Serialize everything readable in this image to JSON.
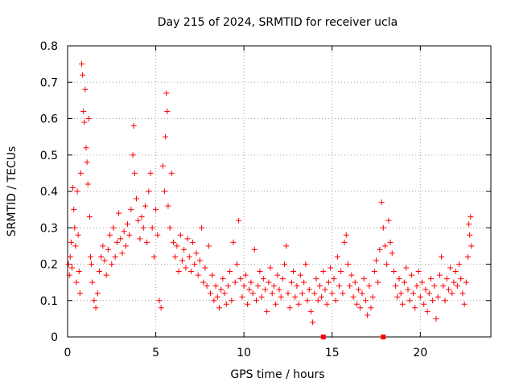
{
  "chart_data": {
    "type": "scatter",
    "title": "Day 215 of 2024, SRMTID for receiver ucla",
    "xlabel": "GPS time / hours",
    "ylabel": "SRMTID / TECUs",
    "xlim": [
      0,
      24.0
    ],
    "ylim": [
      0,
      0.8
    ],
    "xticks": [
      0,
      5,
      10,
      15,
      20
    ],
    "xtick_labels": [
      "0",
      "5",
      "10",
      "15",
      "20"
    ],
    "yticks": [
      0,
      0.1,
      0.2,
      0.3,
      0.4,
      0.5,
      0.6,
      0.7,
      0.8
    ],
    "ytick_labels": [
      "0",
      "0.1",
      "0.2",
      "0.3",
      "0.4",
      "0.5",
      "0.6",
      "0.7",
      "0.8"
    ],
    "grid": true,
    "marker": "plus",
    "color": "#ff0000",
    "series": [
      {
        "name": "SRMTID",
        "points": [
          [
            0.05,
            0.2
          ],
          [
            0.1,
            0.17
          ],
          [
            0.15,
            0.22
          ],
          [
            0.2,
            0.26
          ],
          [
            0.25,
            0.19
          ],
          [
            0.3,
            0.41
          ],
          [
            0.35,
            0.35
          ],
          [
            0.4,
            0.3
          ],
          [
            0.45,
            0.25
          ],
          [
            0.5,
            0.15
          ],
          [
            0.55,
            0.4
          ],
          [
            0.6,
            0.28
          ],
          [
            0.65,
            0.18
          ],
          [
            0.7,
            0.12
          ],
          [
            0.75,
            0.45
          ],
          [
            0.8,
            0.75
          ],
          [
            0.85,
            0.72
          ],
          [
            0.9,
            0.62
          ],
          [
            0.95,
            0.59
          ],
          [
            1.0,
            0.68
          ],
          [
            1.05,
            0.52
          ],
          [
            1.1,
            0.48
          ],
          [
            1.15,
            0.42
          ],
          [
            1.2,
            0.6
          ],
          [
            1.25,
            0.33
          ],
          [
            1.3,
            0.22
          ],
          [
            1.35,
            0.2
          ],
          [
            1.4,
            0.15
          ],
          [
            1.5,
            0.1
          ],
          [
            1.6,
            0.08
          ],
          [
            1.7,
            0.12
          ],
          [
            1.8,
            0.18
          ],
          [
            1.9,
            0.22
          ],
          [
            2.0,
            0.25
          ],
          [
            2.1,
            0.21
          ],
          [
            2.2,
            0.17
          ],
          [
            2.3,
            0.24
          ],
          [
            2.4,
            0.28
          ],
          [
            2.5,
            0.2
          ],
          [
            2.6,
            0.3
          ],
          [
            2.7,
            0.22
          ],
          [
            2.8,
            0.26
          ],
          [
            2.9,
            0.34
          ],
          [
            3.0,
            0.27
          ],
          [
            3.1,
            0.23
          ],
          [
            3.2,
            0.29
          ],
          [
            3.3,
            0.25
          ],
          [
            3.4,
            0.31
          ],
          [
            3.5,
            0.28
          ],
          [
            3.6,
            0.35
          ],
          [
            3.7,
            0.5
          ],
          [
            3.75,
            0.58
          ],
          [
            3.8,
            0.45
          ],
          [
            3.9,
            0.38
          ],
          [
            4.0,
            0.32
          ],
          [
            4.1,
            0.27
          ],
          [
            4.2,
            0.33
          ],
          [
            4.3,
            0.3
          ],
          [
            4.4,
            0.36
          ],
          [
            4.5,
            0.26
          ],
          [
            4.6,
            0.4
          ],
          [
            4.7,
            0.45
          ],
          [
            4.8,
            0.3
          ],
          [
            4.9,
            0.22
          ],
          [
            5.0,
            0.35
          ],
          [
            5.1,
            0.28
          ],
          [
            5.2,
            0.1
          ],
          [
            5.3,
            0.08
          ],
          [
            5.4,
            0.47
          ],
          [
            5.5,
            0.4
          ],
          [
            5.55,
            0.55
          ],
          [
            5.6,
            0.67
          ],
          [
            5.65,
            0.62
          ],
          [
            5.7,
            0.36
          ],
          [
            5.8,
            0.3
          ],
          [
            5.9,
            0.45
          ],
          [
            6.0,
            0.26
          ],
          [
            6.1,
            0.22
          ],
          [
            6.2,
            0.25
          ],
          [
            6.3,
            0.18
          ],
          [
            6.4,
            0.28
          ],
          [
            6.5,
            0.21
          ],
          [
            6.6,
            0.24
          ],
          [
            6.7,
            0.19
          ],
          [
            6.8,
            0.27
          ],
          [
            6.9,
            0.22
          ],
          [
            7.0,
            0.18
          ],
          [
            7.1,
            0.26
          ],
          [
            7.2,
            0.2
          ],
          [
            7.3,
            0.23
          ],
          [
            7.4,
            0.17
          ],
          [
            7.5,
            0.21
          ],
          [
            7.6,
            0.3
          ],
          [
            7.7,
            0.15
          ],
          [
            7.8,
            0.19
          ],
          [
            7.9,
            0.14
          ],
          [
            8.0,
            0.25
          ],
          [
            8.1,
            0.12
          ],
          [
            8.2,
            0.17
          ],
          [
            8.3,
            0.1
          ],
          [
            8.4,
            0.14
          ],
          [
            8.5,
            0.11
          ],
          [
            8.6,
            0.08
          ],
          [
            8.7,
            0.13
          ],
          [
            8.8,
            0.16
          ],
          [
            8.9,
            0.12
          ],
          [
            9.0,
            0.09
          ],
          [
            9.1,
            0.14
          ],
          [
            9.2,
            0.18
          ],
          [
            9.3,
            0.1
          ],
          [
            9.4,
            0.26
          ],
          [
            9.5,
            0.15
          ],
          [
            9.6,
            0.2
          ],
          [
            9.7,
            0.32
          ],
          [
            9.8,
            0.16
          ],
          [
            9.9,
            0.11
          ],
          [
            10.0,
            0.14
          ],
          [
            10.1,
            0.17
          ],
          [
            10.2,
            0.09
          ],
          [
            10.3,
            0.13
          ],
          [
            10.4,
            0.15
          ],
          [
            10.5,
            0.12
          ],
          [
            10.6,
            0.24
          ],
          [
            10.7,
            0.1
          ],
          [
            10.8,
            0.14
          ],
          [
            10.9,
            0.18
          ],
          [
            11.0,
            0.11
          ],
          [
            11.1,
            0.16
          ],
          [
            11.2,
            0.13
          ],
          [
            11.3,
            0.07
          ],
          [
            11.4,
            0.15
          ],
          [
            11.5,
            0.19
          ],
          [
            11.6,
            0.12
          ],
          [
            11.7,
            0.14
          ],
          [
            11.8,
            0.09
          ],
          [
            11.9,
            0.17
          ],
          [
            12.0,
            0.13
          ],
          [
            12.1,
            0.11
          ],
          [
            12.2,
            0.16
          ],
          [
            12.3,
            0.2
          ],
          [
            12.4,
            0.25
          ],
          [
            12.5,
            0.12
          ],
          [
            12.6,
            0.08
          ],
          [
            12.7,
            0.15
          ],
          [
            12.8,
            0.18
          ],
          [
            12.9,
            0.11
          ],
          [
            13.0,
            0.14
          ],
          [
            13.1,
            0.09
          ],
          [
            13.2,
            0.17
          ],
          [
            13.3,
            0.12
          ],
          [
            13.4,
            0.15
          ],
          [
            13.5,
            0.2
          ],
          [
            13.6,
            0.1
          ],
          [
            13.7,
            0.13
          ],
          [
            13.8,
            0.07
          ],
          [
            13.9,
            0.04
          ],
          [
            14.0,
            0.12
          ],
          [
            14.1,
            0.16
          ],
          [
            14.2,
            0.1
          ],
          [
            14.3,
            0.14
          ],
          [
            14.4,
            0.11
          ],
          [
            14.5,
            0.18
          ],
          [
            14.6,
            0.13
          ],
          [
            14.7,
            0.09
          ],
          [
            14.8,
            0.15
          ],
          [
            14.9,
            0.19
          ],
          [
            15.0,
            0.12
          ],
          [
            15.1,
            0.16
          ],
          [
            15.2,
            0.1
          ],
          [
            15.3,
            0.22
          ],
          [
            15.4,
            0.14
          ],
          [
            15.5,
            0.18
          ],
          [
            15.6,
            0.12
          ],
          [
            15.7,
            0.26
          ],
          [
            15.8,
            0.28
          ],
          [
            15.9,
            0.2
          ],
          [
            16.0,
            0.14
          ],
          [
            16.1,
            0.17
          ],
          [
            16.2,
            0.11
          ],
          [
            16.3,
            0.15
          ],
          [
            16.4,
            0.09
          ],
          [
            16.5,
            0.13
          ],
          [
            16.6,
            0.08
          ],
          [
            16.7,
            0.12
          ],
          [
            16.8,
            0.16
          ],
          [
            16.9,
            0.1
          ],
          [
            17.0,
            0.06
          ],
          [
            17.1,
            0.14
          ],
          [
            17.2,
            0.08
          ],
          [
            17.3,
            0.11
          ],
          [
            17.4,
            0.18
          ],
          [
            17.5,
            0.21
          ],
          [
            17.6,
            0.15
          ],
          [
            17.7,
            0.24
          ],
          [
            17.8,
            0.37
          ],
          [
            17.9,
            0.3
          ],
          [
            18.0,
            0.25
          ],
          [
            18.1,
            0.2
          ],
          [
            18.2,
            0.32
          ],
          [
            18.3,
            0.26
          ],
          [
            18.4,
            0.23
          ],
          [
            18.5,
            0.18
          ],
          [
            18.6,
            0.14
          ],
          [
            18.7,
            0.11
          ],
          [
            18.8,
            0.16
          ],
          [
            18.9,
            0.12
          ],
          [
            19.0,
            0.09
          ],
          [
            19.1,
            0.15
          ],
          [
            19.2,
            0.19
          ],
          [
            19.3,
            0.13
          ],
          [
            19.4,
            0.1
          ],
          [
            19.5,
            0.17
          ],
          [
            19.6,
            0.12
          ],
          [
            19.7,
            0.08
          ],
          [
            19.8,
            0.14
          ],
          [
            19.9,
            0.18
          ],
          [
            20.0,
            0.11
          ],
          [
            20.1,
            0.15
          ],
          [
            20.2,
            0.09
          ],
          [
            20.3,
            0.13
          ],
          [
            20.4,
            0.07
          ],
          [
            20.5,
            0.12
          ],
          [
            20.6,
            0.16
          ],
          [
            20.7,
            0.1
          ],
          [
            20.8,
            0.14
          ],
          [
            20.9,
            0.05
          ],
          [
            21.0,
            0.11
          ],
          [
            21.1,
            0.17
          ],
          [
            21.2,
            0.22
          ],
          [
            21.3,
            0.14
          ],
          [
            21.4,
            0.1
          ],
          [
            21.5,
            0.16
          ],
          [
            21.6,
            0.13
          ],
          [
            21.7,
            0.19
          ],
          [
            21.8,
            0.12
          ],
          [
            21.9,
            0.15
          ],
          [
            22.0,
            0.18
          ],
          [
            22.1,
            0.14
          ],
          [
            22.2,
            0.2
          ],
          [
            22.3,
            0.16
          ],
          [
            22.4,
            0.12
          ],
          [
            22.5,
            0.09
          ],
          [
            22.6,
            0.15
          ],
          [
            22.7,
            0.22
          ],
          [
            22.75,
            0.31
          ],
          [
            22.8,
            0.28
          ],
          [
            22.85,
            0.33
          ],
          [
            22.9,
            0.25
          ]
        ]
      }
    ],
    "squares": [
      [
        14.5,
        0.0
      ],
      [
        17.9,
        0.0
      ]
    ]
  }
}
